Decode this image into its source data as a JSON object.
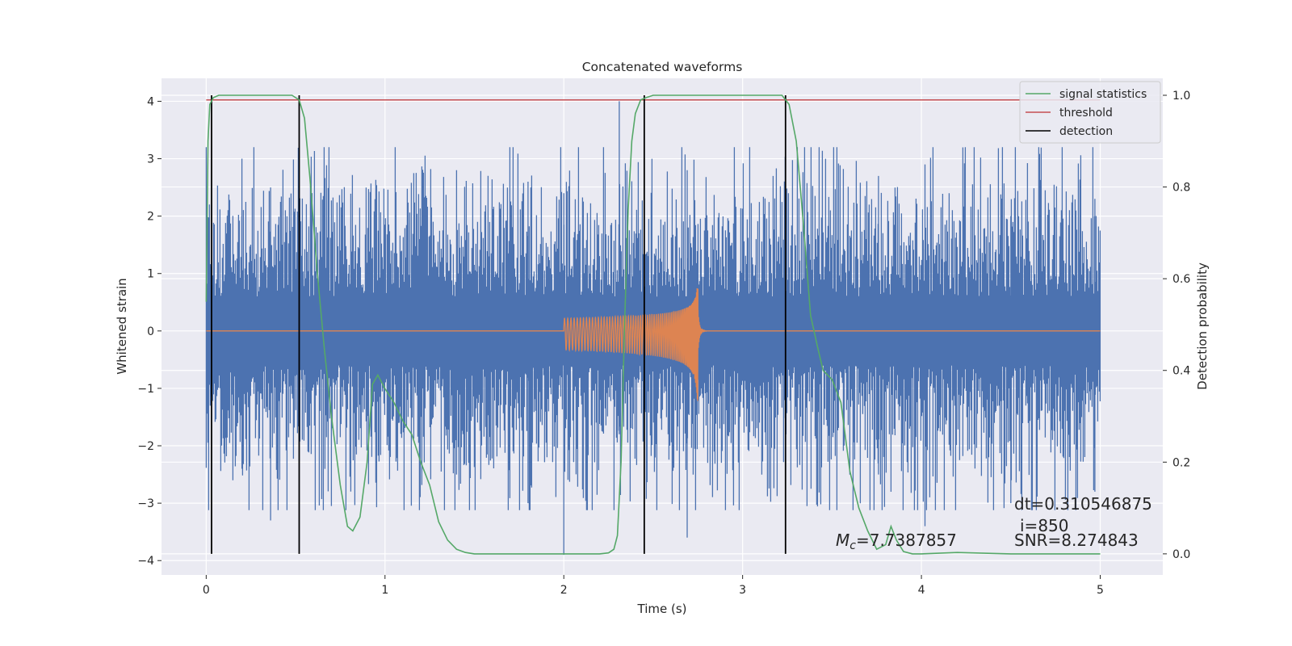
{
  "chart_data": {
    "type": "line",
    "title": "Concatenated waveforms",
    "xlabel": "Time (s)",
    "ylabel": "Whitened strain",
    "y2label": "Detection probability",
    "xlim": [
      -0.25,
      5.35
    ],
    "ylim": [
      -4.25,
      4.4
    ],
    "y2lim": [
      -0.046,
      1.037
    ],
    "x_ticks": [
      0,
      1,
      2,
      3,
      4,
      5
    ],
    "y_ticks": [
      -4,
      -3,
      -2,
      -1,
      0,
      1,
      2,
      3,
      4
    ],
    "y2_ticks": [
      0.0,
      0.2,
      0.4,
      0.6,
      0.8,
      1.0
    ],
    "x_tick_labels": [
      "0",
      "1",
      "2",
      "3",
      "4",
      "5"
    ],
    "y_tick_labels": [
      "−4",
      "−3",
      "−2",
      "−1",
      "0",
      "1",
      "2",
      "3",
      "4"
    ],
    "y2_tick_labels": [
      "0.0",
      "0.2",
      "0.4",
      "0.6",
      "0.8",
      "1.0"
    ],
    "grid": true,
    "legend_position": "top-right",
    "colors": {
      "background": "#eaeaf2",
      "grid": "#ffffff",
      "strain": "#4c72b0",
      "waveform": "#dd8452",
      "signal_statistics": "#55a868",
      "threshold": "#c44e52",
      "detection": "#000000"
    },
    "strain_noise": {
      "x_range": [
        0,
        5
      ],
      "typical_envelope": [
        -1.5,
        1.5
      ],
      "max": 4.0,
      "min": -3.9
    },
    "waveform": {
      "x_start": 2.0,
      "x_merger": 2.75,
      "x_end": 2.8,
      "start_amplitude": 0.22,
      "peak_upper": 0.9,
      "peak_lower": -1.35
    },
    "series": [
      {
        "name": "signal statistics",
        "axis": "right",
        "x": [
          0.0,
          0.01,
          0.02,
          0.04,
          0.07,
          0.1,
          0.2,
          0.3,
          0.4,
          0.48,
          0.52,
          0.55,
          0.58,
          0.62,
          0.66,
          0.7,
          0.75,
          0.79,
          0.82,
          0.86,
          0.9,
          0.93,
          0.96,
          1.0,
          1.05,
          1.1,
          1.15,
          1.2,
          1.25,
          1.3,
          1.35,
          1.4,
          1.45,
          1.5,
          1.6,
          1.8,
          2.0,
          2.1,
          2.2,
          2.25,
          2.28,
          2.3,
          2.32,
          2.34,
          2.36,
          2.38,
          2.4,
          2.43,
          2.46,
          2.5,
          2.6,
          2.8,
          3.0,
          3.15,
          3.22,
          3.26,
          3.3,
          3.34,
          3.38,
          3.42,
          3.45,
          3.5,
          3.55,
          3.6,
          3.65,
          3.7,
          3.75,
          3.8,
          3.83,
          3.86,
          3.9,
          3.95,
          4.0,
          4.2,
          4.5,
          5.0
        ],
        "values": [
          0.55,
          0.9,
          0.98,
          0.995,
          1.0,
          1.0,
          1.0,
          1.0,
          1.0,
          1.0,
          0.99,
          0.95,
          0.82,
          0.62,
          0.45,
          0.3,
          0.15,
          0.06,
          0.05,
          0.08,
          0.2,
          0.37,
          0.39,
          0.36,
          0.33,
          0.29,
          0.26,
          0.2,
          0.15,
          0.07,
          0.03,
          0.01,
          0.003,
          0.0,
          0.0,
          0.0,
          0.0,
          0.0,
          0.0,
          0.002,
          0.01,
          0.04,
          0.2,
          0.5,
          0.75,
          0.9,
          0.96,
          0.99,
          0.995,
          1.0,
          1.0,
          1.0,
          1.0,
          1.0,
          1.0,
          0.98,
          0.9,
          0.72,
          0.52,
          0.45,
          0.4,
          0.38,
          0.33,
          0.18,
          0.1,
          0.05,
          0.01,
          0.02,
          0.06,
          0.03,
          0.005,
          0.0,
          0.0,
          0.003,
          0.0,
          0.0
        ]
      },
      {
        "name": "threshold",
        "axis": "right",
        "x": [
          0,
          5
        ],
        "values": [
          0.99,
          0.99
        ]
      },
      {
        "name": "detection",
        "axis": "right",
        "type": "vlines",
        "x": [
          0.03,
          0.52,
          2.45,
          3.24
        ],
        "ymin": 0.0,
        "ymax": 1.0
      }
    ],
    "annotations": {
      "dt_text": "dt=0.310546875",
      "i_text": "i=850",
      "snr_text": "SNR=8.274843",
      "mc_symbol": "M",
      "mc_subscript": "c",
      "mc_value": "=7.7387857"
    }
  }
}
